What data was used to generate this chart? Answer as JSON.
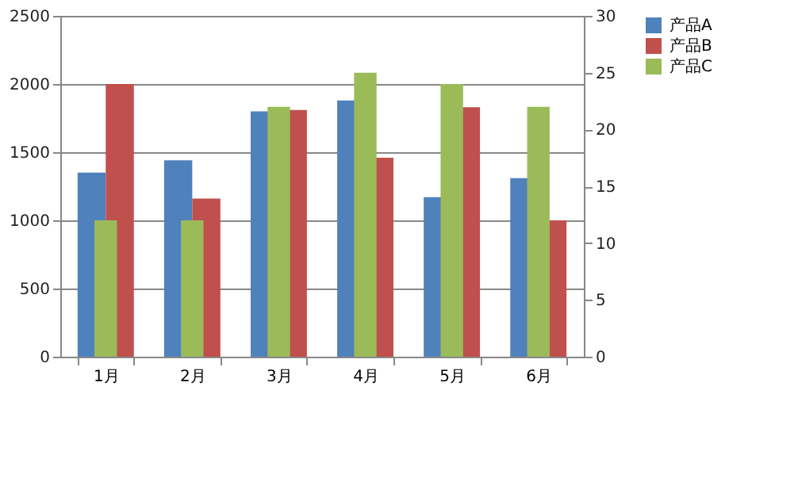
{
  "chart_data": {
    "type": "bar",
    "categories": [
      "1月",
      "2月",
      "3月",
      "4月",
      "5月",
      "6月"
    ],
    "series": [
      {
        "name": "产品A",
        "color": "#4f81bd",
        "values": [
          1350,
          1440,
          1800,
          1880,
          1170,
          1310
        ]
      },
      {
        "name": "产品B",
        "color": "#c0504d",
        "values": [
          2000,
          1160,
          1810,
          1460,
          1830,
          1000
        ]
      },
      {
        "name": "产品C",
        "color": "#9bbb59",
        "values": [
          12,
          12,
          22,
          25,
          24,
          22
        ],
        "axis": "y2"
      }
    ],
    "ylim": [
      0,
      2500
    ],
    "yticks": [
      0,
      500,
      1000,
      1500,
      2000,
      2500
    ],
    "y2lim": [
      0,
      30
    ],
    "y2ticks": [
      0,
      5,
      10,
      15,
      20,
      25,
      30
    ],
    "grid": "y",
    "legend": "right"
  }
}
